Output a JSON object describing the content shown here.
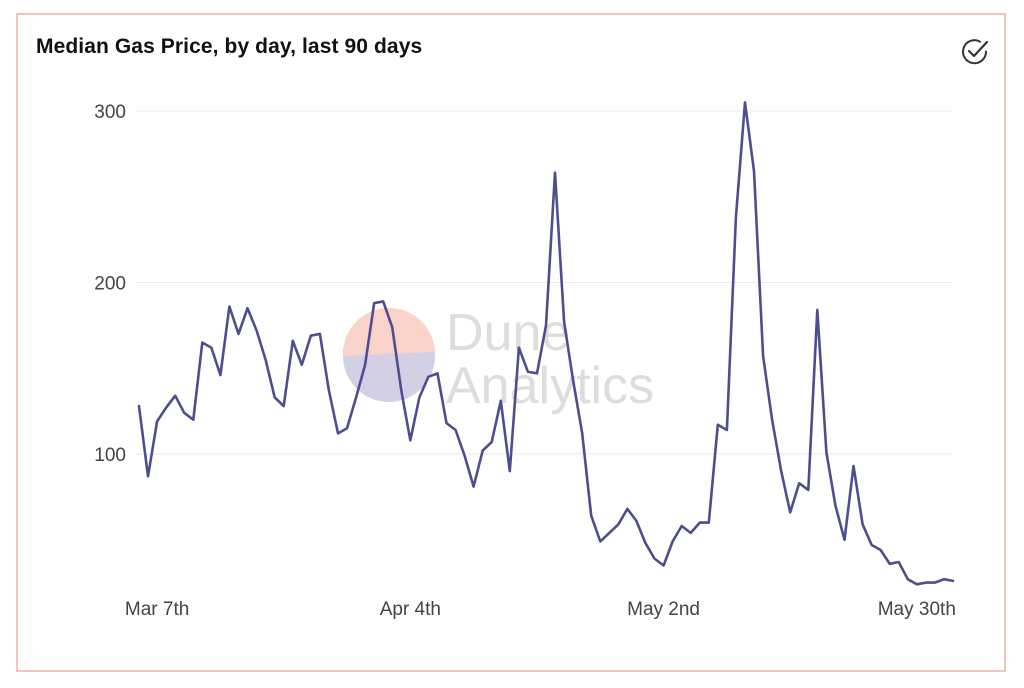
{
  "header": {
    "title": "Median Gas Price, by day, last 90 days",
    "verified_icon": "check-circle-icon"
  },
  "watermark": {
    "line1": "Dune",
    "line2": "Analytics"
  },
  "colors": {
    "line": "#4e4e8f",
    "grid": "#ebebeb",
    "border": "#f2c4c0",
    "wm_top": "#f9d2ca",
    "wm_bottom": "#d3d0e6"
  },
  "chart_data": {
    "type": "line",
    "title": "Median Gas Price, by day, last 90 days",
    "xlabel": "",
    "ylabel": "",
    "x_start": "Mar 7th",
    "x_ticks": [
      {
        "label": "Mar 7th",
        "index": 2
      },
      {
        "label": "Apr 4th",
        "index": 30
      },
      {
        "label": "May 2nd",
        "index": 58
      },
      {
        "label": "May 30th",
        "index": 86
      }
    ],
    "y_ticks": [
      100,
      200,
      300
    ],
    "ylim": [
      20,
      310
    ],
    "grid": true,
    "legend": "none",
    "series": [
      {
        "values": [
          128,
          87,
          119,
          127,
          134,
          124,
          120,
          165,
          162,
          146,
          186,
          170,
          185,
          172,
          155,
          133,
          128,
          166,
          152,
          169,
          170,
          137,
          112,
          115,
          133,
          152,
          188,
          189,
          174,
          137,
          108,
          133,
          145,
          147,
          118,
          114,
          99,
          81,
          102,
          107,
          131,
          90,
          162,
          148,
          147,
          175,
          264,
          177,
          143,
          112,
          64,
          49,
          54,
          59,
          68,
          61,
          48,
          39,
          35,
          49,
          58,
          54,
          60,
          60,
          117,
          114,
          238,
          305,
          265,
          157,
          120,
          90,
          66,
          83,
          79,
          184,
          101,
          70,
          50,
          93,
          59,
          47,
          44,
          36,
          37,
          27,
          24,
          25,
          25,
          27,
          26
        ]
      }
    ]
  }
}
